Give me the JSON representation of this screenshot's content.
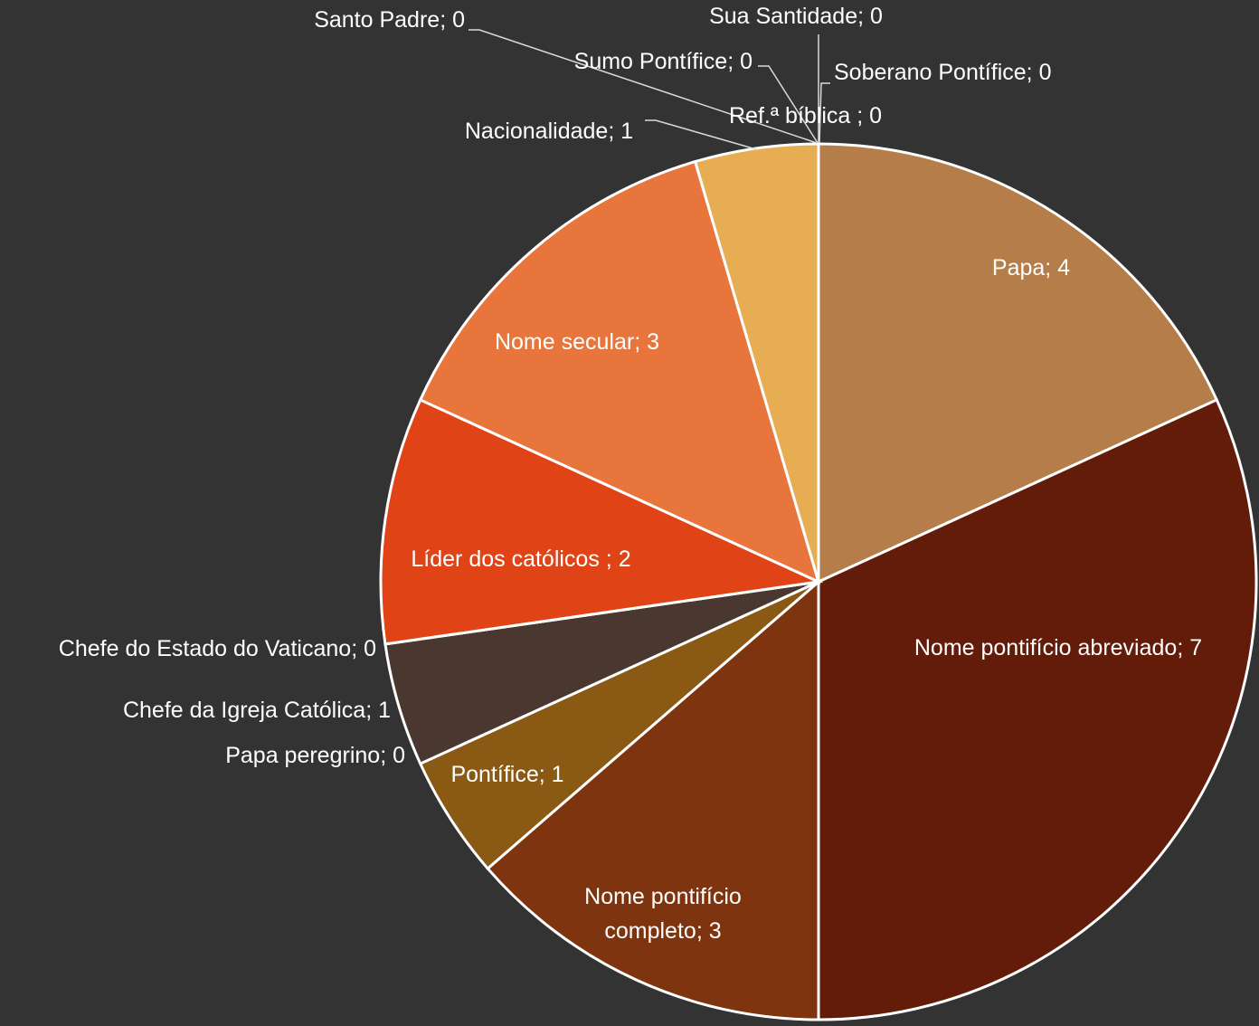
{
  "chart_data": {
    "type": "pie",
    "categories": [
      "Papa",
      "Nome pontifício abreviado",
      "Nome pontifício completo",
      "Pontífice",
      "Papa peregrino",
      "Chefe da Igreja Católica",
      "Chefe do Estado do Vaticano",
      "Líder dos católicos ",
      "Nome secular",
      "Nacionalidade",
      "Santo Padre",
      "Sumo Pontífice",
      "Sua Santidade",
      "Soberano Pontífice",
      "Ref.ª bíblica "
    ],
    "values": [
      4,
      7,
      3,
      1,
      0,
      1,
      0,
      2,
      3,
      1,
      0,
      0,
      0,
      0,
      0
    ],
    "colors": [
      "#b57d4a",
      "#631c0a",
      "#7e340e",
      "#8a5a14",
      "#6b4a2a",
      "#4a3730",
      "#5a3a2a",
      "#e04316",
      "#e8763c",
      "#e6ad52",
      "#c0a070",
      "#c0a070",
      "#c0a070",
      "#c0a070",
      "#c0a070"
    ],
    "label_separator": "; "
  }
}
